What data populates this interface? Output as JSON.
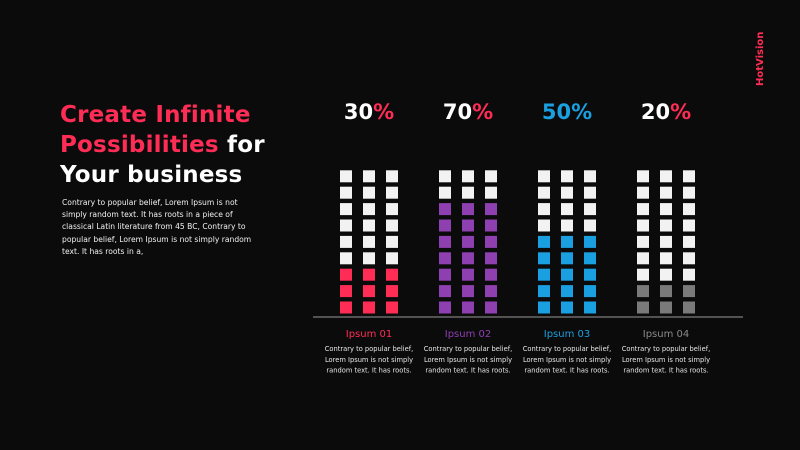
{
  "brand": "HotVision",
  "headline": {
    "line1": "Create Infinite",
    "line2_pink": "Possibilities",
    "line2_white": " for",
    "line3": "Your business"
  },
  "intro_text": "Contrary to popular belief, Lorem Ipsum is not simply random text. It has roots in a piece of classical Latin literature from 45 BC, Contrary to popular belief, Lorem Ipsum is not simply random text. It has roots in a,",
  "colors": {
    "accent": "#ff2d55",
    "empty": "#f2f2f2"
  },
  "chart_data": {
    "type": "bar",
    "categories": [
      "Ipsum 01",
      "Ipsum 02",
      "Ipsum 03",
      "Ipsum 04"
    ],
    "values": [
      30,
      70,
      50,
      20
    ],
    "ylim": [
      0,
      100
    ],
    "unit": "%",
    "series": [
      {
        "values": [
          30,
          70,
          50,
          20
        ]
      }
    ],
    "series_colors": [
      "#ff2d55",
      "#8e3fb0",
      "#1a9fe0",
      "#7a7a7a"
    ],
    "label_colors": [
      "#ff2d55",
      "#8e3fb0",
      "#1a9fe0",
      "#8a8a8a"
    ],
    "descriptions": [
      [
        "Contrary to popular belief,",
        "Lorem Ipsum is not simply",
        "random text. It has roots."
      ],
      [
        "Contrary to popular belief,",
        "Lorem Ipsum is not simply",
        "random text. It has roots."
      ],
      [
        "Contrary to popular belief,",
        "Lorem Ipsum is not simply",
        "random text. It has roots."
      ],
      [
        "Contrary to popular belief,",
        "Lorem Ipsum is not simply",
        "random text. It has roots."
      ]
    ],
    "grid": false,
    "legend": "none"
  }
}
